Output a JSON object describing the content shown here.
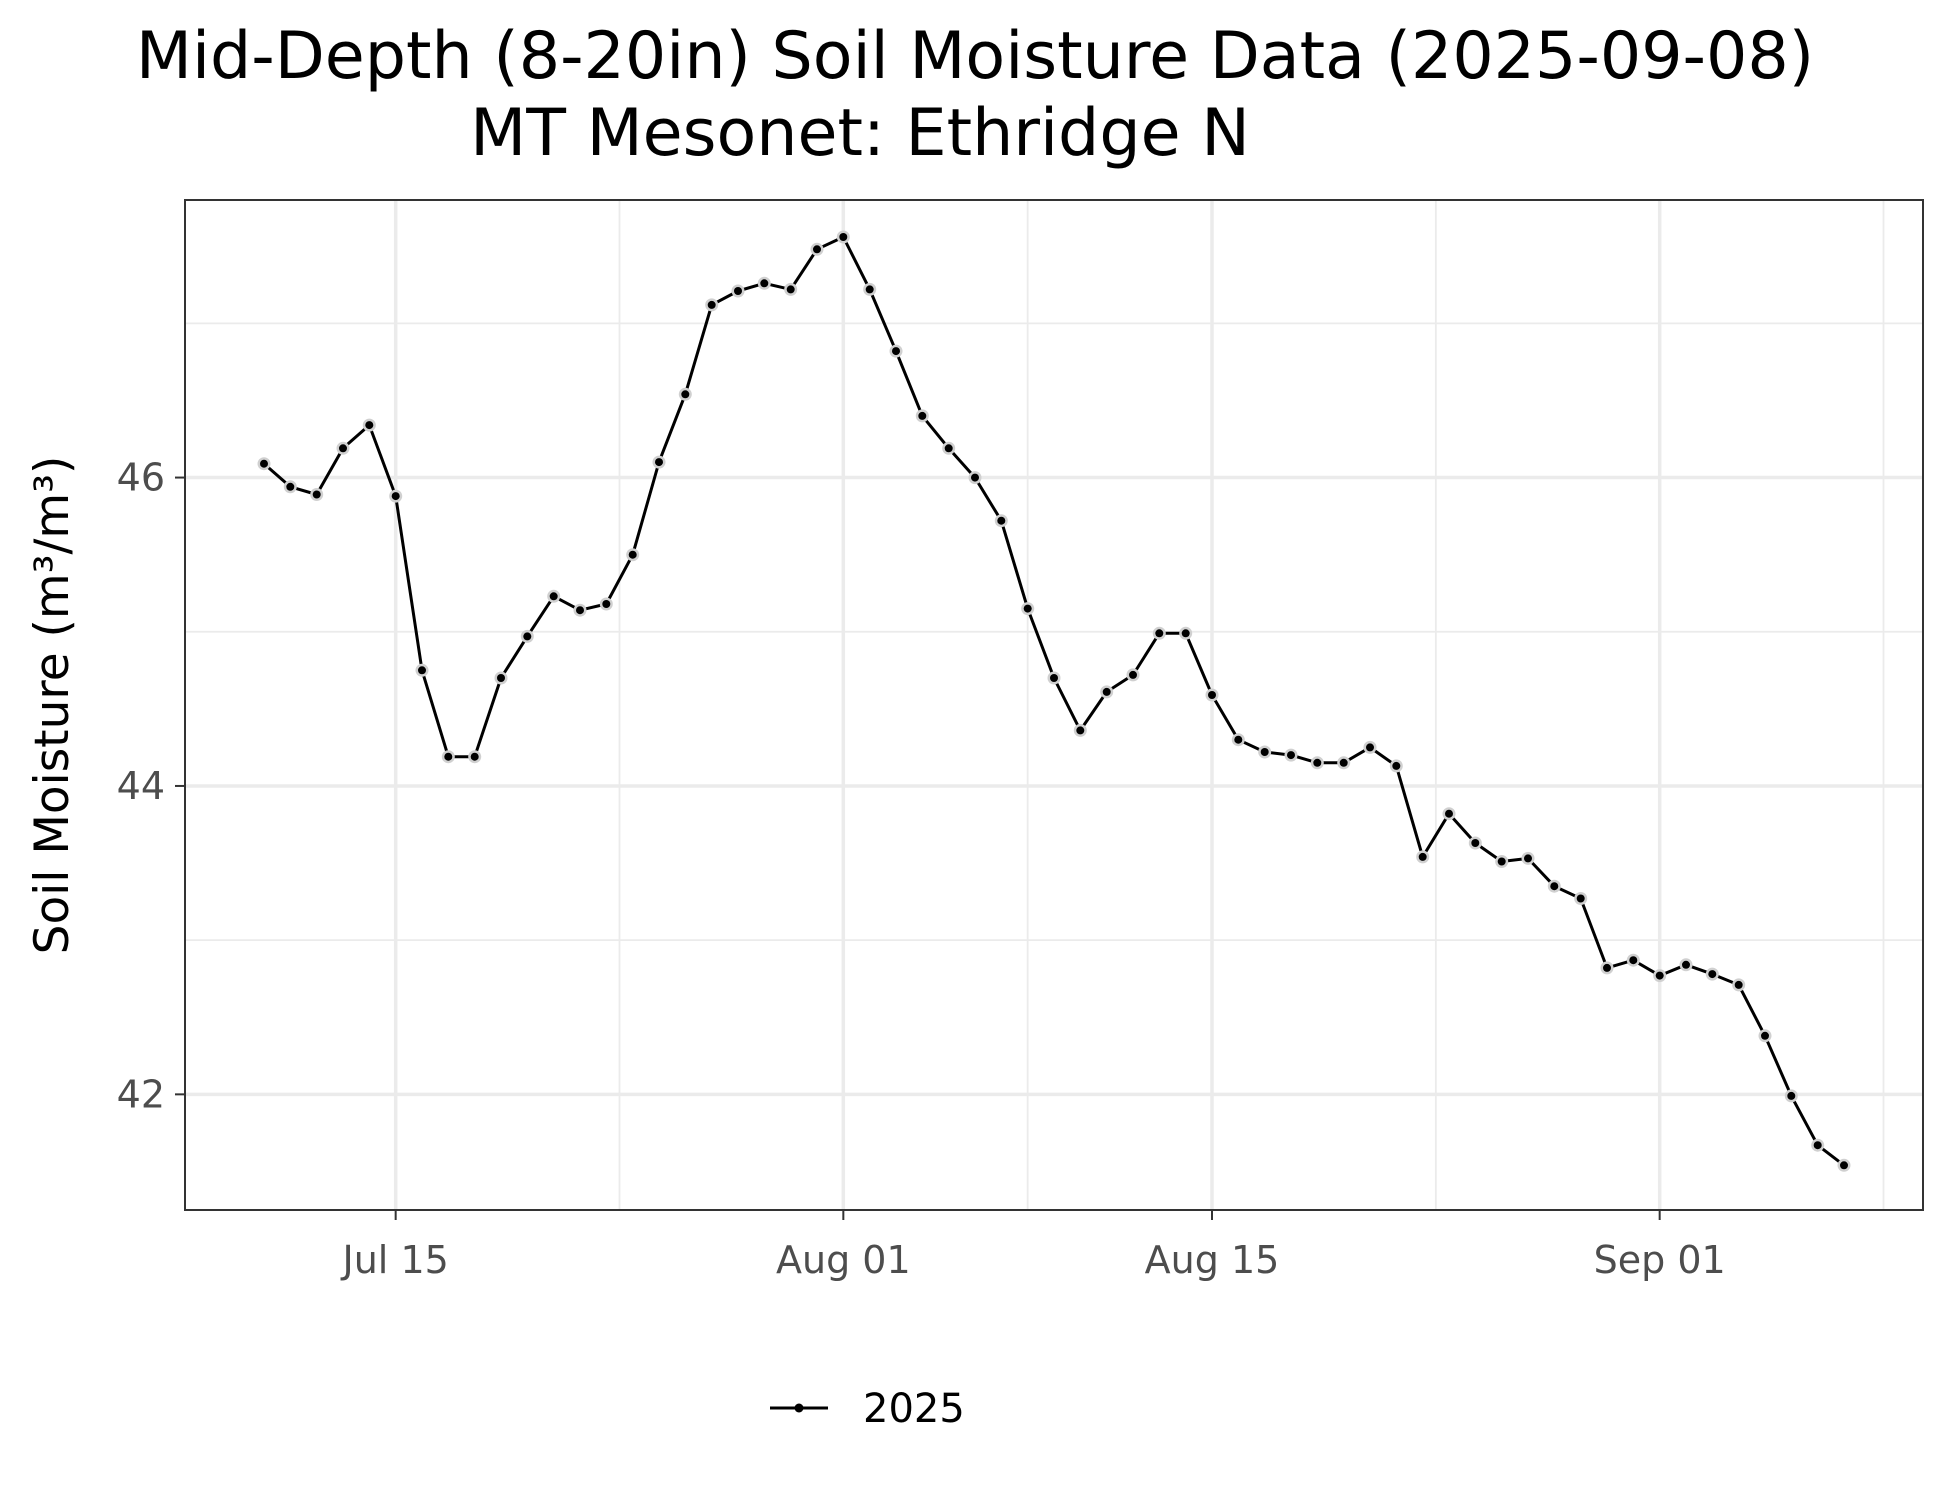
{
  "chart_data": {
    "type": "line",
    "title": "Mid-Depth (8-20in) Soil Moisture Data (2025-09-08)",
    "subtitle": "MT Mesonet: Ethridge N",
    "xlabel": "",
    "ylabel": "Soil Moisture (m³/m³)",
    "xlim": [
      "2025-07-07",
      "2025-09-11"
    ],
    "ylim": [
      41.25,
      47.8
    ],
    "x_ticks": [
      {
        "date": "2025-07-15",
        "label": "Jul 15"
      },
      {
        "date": "2025-08-01",
        "label": "Aug 01"
      },
      {
        "date": "2025-08-15",
        "label": "Aug 15"
      },
      {
        "date": "2025-09-01",
        "label": "Sep 01"
      }
    ],
    "y_ticks": [
      42,
      44,
      46
    ],
    "grid": true,
    "legend": {
      "position": "bottom",
      "entries": [
        "2025"
      ]
    },
    "series": [
      {
        "name": "2025",
        "color": "#000000",
        "x": [
          "2025-07-10",
          "2025-07-11",
          "2025-07-12",
          "2025-07-13",
          "2025-07-14",
          "2025-07-15",
          "2025-07-16",
          "2025-07-17",
          "2025-07-18",
          "2025-07-19",
          "2025-07-20",
          "2025-07-21",
          "2025-07-22",
          "2025-07-23",
          "2025-07-24",
          "2025-07-25",
          "2025-07-26",
          "2025-07-27",
          "2025-07-28",
          "2025-07-29",
          "2025-07-30",
          "2025-07-31",
          "2025-08-01",
          "2025-08-02",
          "2025-08-03",
          "2025-08-04",
          "2025-08-05",
          "2025-08-06",
          "2025-08-07",
          "2025-08-08",
          "2025-08-09",
          "2025-08-10",
          "2025-08-11",
          "2025-08-12",
          "2025-08-13",
          "2025-08-14",
          "2025-08-15",
          "2025-08-16",
          "2025-08-17",
          "2025-08-18",
          "2025-08-19",
          "2025-08-20",
          "2025-08-21",
          "2025-08-22",
          "2025-08-23",
          "2025-08-24",
          "2025-08-25",
          "2025-08-26",
          "2025-08-27",
          "2025-08-28",
          "2025-08-29",
          "2025-08-30",
          "2025-08-31",
          "2025-09-01",
          "2025-09-02",
          "2025-09-03",
          "2025-09-04",
          "2025-09-05",
          "2025-09-06",
          "2025-09-07",
          "2025-09-08"
        ],
        "values": [
          46.09,
          45.94,
          45.89,
          46.19,
          46.34,
          45.88,
          44.75,
          44.19,
          44.19,
          44.7,
          44.97,
          45.23,
          45.14,
          45.18,
          45.5,
          46.1,
          46.54,
          47.12,
          47.21,
          47.26,
          47.22,
          47.48,
          47.56,
          47.22,
          46.82,
          46.4,
          46.19,
          46.0,
          45.72,
          45.15,
          44.7,
          44.36,
          44.61,
          44.72,
          44.99,
          44.99,
          44.59,
          44.3,
          44.22,
          44.2,
          44.15,
          44.15,
          44.25,
          44.13,
          43.54,
          43.82,
          43.63,
          43.51,
          43.53,
          43.35,
          43.27,
          42.82,
          42.87,
          42.77,
          42.84,
          42.78,
          42.71,
          42.38,
          41.99,
          41.67,
          41.54
        ]
      }
    ]
  }
}
